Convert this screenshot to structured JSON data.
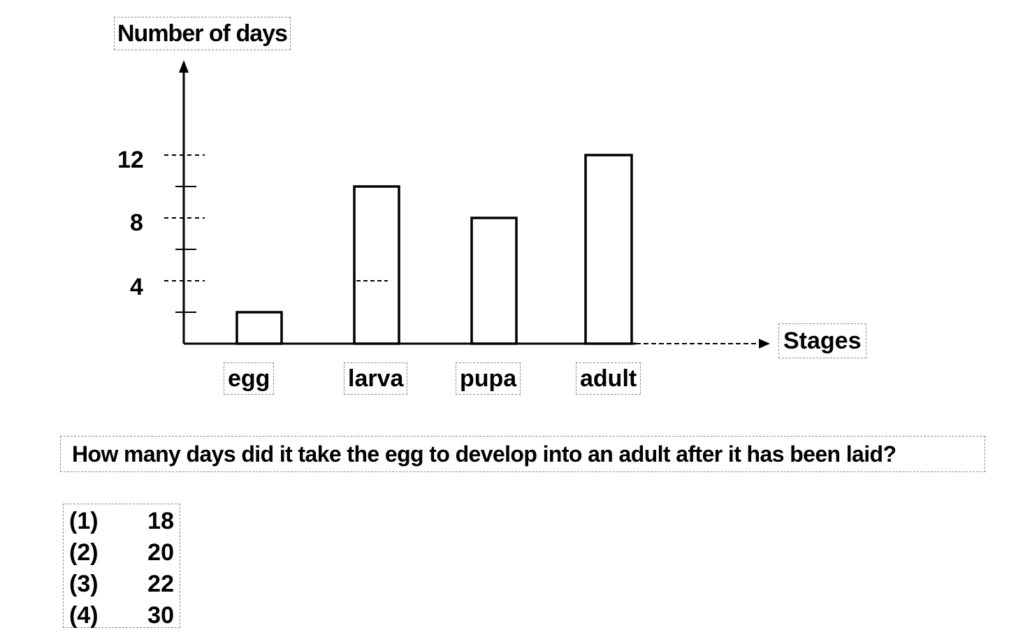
{
  "chart_data": {
    "type": "bar",
    "ylabel": "Number of days",
    "xlabel": "Stages",
    "categories": [
      "egg",
      "larva",
      "pupa",
      "adult"
    ],
    "values": [
      2,
      10,
      8,
      12
    ],
    "yticks": [
      "4",
      "8",
      "12"
    ],
    "ylim": [
      0,
      18
    ],
    "grid": false,
    "legend": "none"
  },
  "question": {
    "text": "How many days did it take the egg to develop into an adult after it has been laid?",
    "options": [
      {
        "num": "(1)",
        "value": "18"
      },
      {
        "num": "(2)",
        "value": "20"
      },
      {
        "num": "(3)",
        "value": "22"
      },
      {
        "num": "(4)",
        "value": "30"
      }
    ]
  }
}
